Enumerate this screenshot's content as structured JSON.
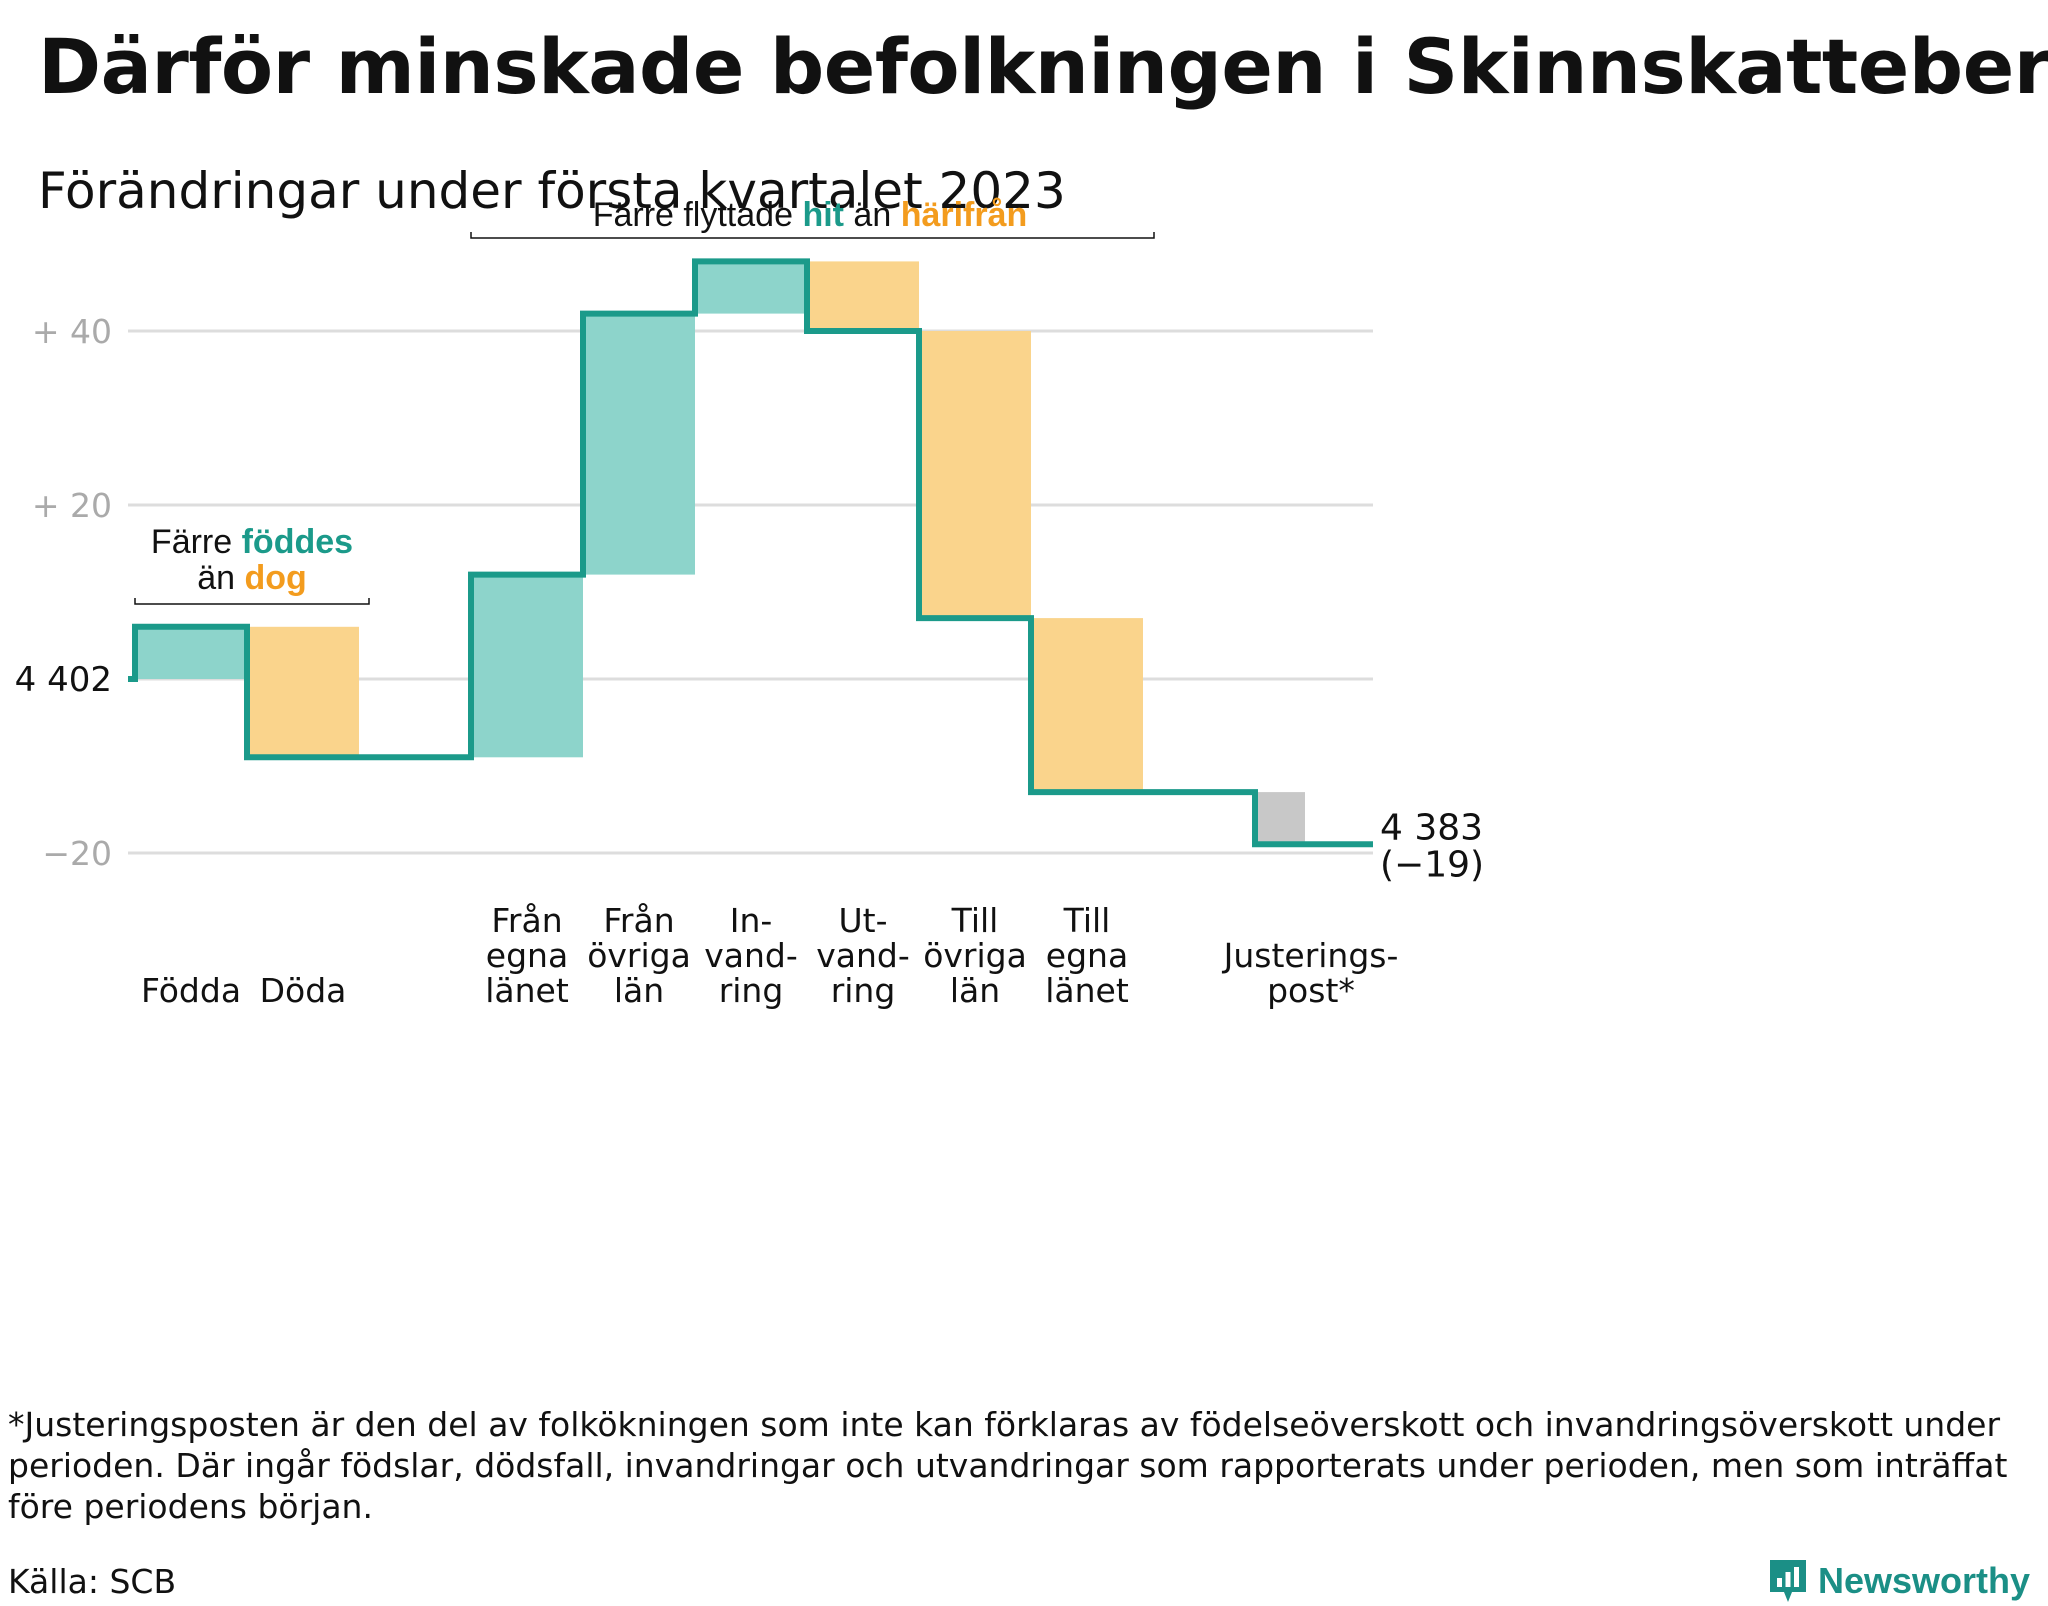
{
  "title": "Därför minskade befolkningen i Skinnskatteberg",
  "subtitle": "Förändringar under första kvartalet 2023",
  "chart_data": {
    "type": "waterfall",
    "start_value": 4402,
    "start_label": "4 402",
    "end_label": "4 383",
    "end_change_label": "(−19)",
    "ylim": [
      -22,
      49
    ],
    "yticks": [
      {
        "value": 40,
        "label": "+ 40"
      },
      {
        "value": 20,
        "label": "+ 20"
      },
      {
        "value": -20,
        "label": "−20"
      }
    ],
    "steps": [
      {
        "id": "fodda",
        "label_lines": [
          "Födda"
        ],
        "change": 6,
        "kind": "in"
      },
      {
        "id": "doda",
        "label_lines": [
          "Döda"
        ],
        "change": -15,
        "kind": "out"
      },
      {
        "id": "gap",
        "label_lines": [],
        "change": 0,
        "kind": "none"
      },
      {
        "id": "fran-egna-lanet",
        "label_lines": [
          "Från",
          "egna",
          "länet"
        ],
        "change": 21,
        "kind": "in"
      },
      {
        "id": "fran-ovriga-lan",
        "label_lines": [
          "Från",
          "övriga",
          "län"
        ],
        "change": 30,
        "kind": "in"
      },
      {
        "id": "invandring",
        "label_lines": [
          "In-",
          "vand-",
          "ring"
        ],
        "change": 6,
        "kind": "in"
      },
      {
        "id": "utvandring",
        "label_lines": [
          "Ut-",
          "vand-",
          "ring"
        ],
        "change": -8,
        "kind": "out"
      },
      {
        "id": "till-ovriga-lan",
        "label_lines": [
          "Till",
          "övriga",
          "län"
        ],
        "change": -33,
        "kind": "out"
      },
      {
        "id": "till-egna-lanet",
        "label_lines": [
          "Till",
          "egna",
          "länet"
        ],
        "change": -20,
        "kind": "out"
      },
      {
        "id": "gap2",
        "label_lines": [],
        "change": 0,
        "kind": "none"
      },
      {
        "id": "justeringspost",
        "label_lines": [
          "Justerings-",
          "post*"
        ],
        "change": -6,
        "kind": "adjust"
      }
    ],
    "annotations": [
      {
        "id": "births",
        "parts": [
          {
            "text": "Färre ",
            "style": "plain"
          },
          {
            "text": "föddes",
            "style": "in"
          }
        ],
        "parts2": [
          {
            "text": "än ",
            "style": "plain"
          },
          {
            "text": "dog",
            "style": "out"
          }
        ]
      },
      {
        "id": "migration",
        "parts": [
          {
            "text": "Färre flyttade ",
            "style": "plain"
          },
          {
            "text": "hit",
            "style": "in"
          },
          {
            "text": " än ",
            "style": "plain"
          },
          {
            "text": "härifrån",
            "style": "out"
          }
        ]
      }
    ],
    "colors": {
      "line": "#1b9a8a",
      "in_fill": "#8dd4cb",
      "out_fill": "#fad48c",
      "adjust_fill": "#c8c8c8",
      "in_text": "#1b9a8a",
      "out_text": "#f39c1e",
      "grid": "#dddddd",
      "tick_text": "#aaaaaa"
    }
  },
  "footnote": "*Justeringsposten är den del av folkökningen som inte kan förklaras av födelseöverskott och invandringsöverskott under perioden. Där ingår födslar, dödsfall, invandringar och utvandringar som rapporterats under perioden, men som inträffat före periodens början.",
  "source": "Källa: SCB",
  "brand": {
    "name": "Newsworthy",
    "icon": "newsworthy-logo-icon"
  }
}
